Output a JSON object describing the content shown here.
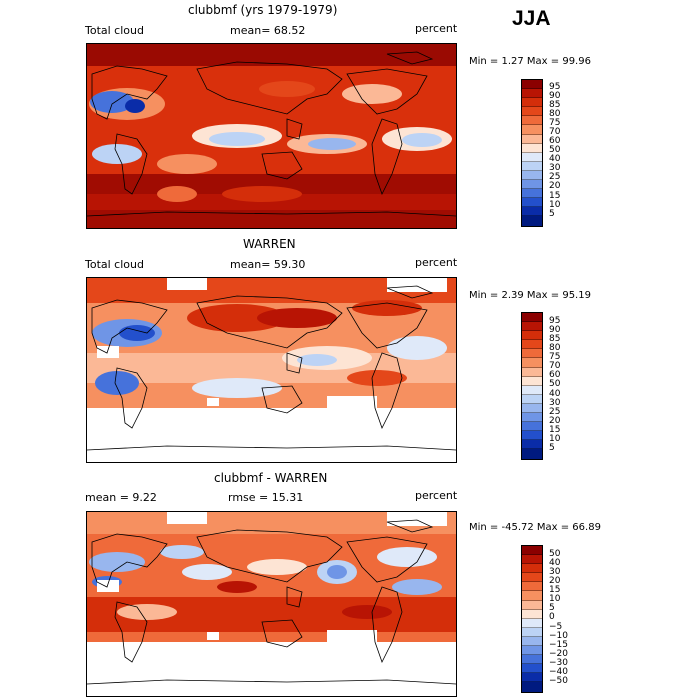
{
  "season": "JJA",
  "panels": [
    {
      "id": "model",
      "title": "clubbmf (yrs 1979-1979)",
      "left_label": "Total cloud",
      "mid_label": "mean=  68.52",
      "right_label": "percent",
      "minmax": "Min =    1.27  Max =   99.96",
      "colorbar_ticks": [
        "95",
        "90",
        "85",
        "80",
        "75",
        "70",
        "60",
        "50",
        "40",
        "30",
        "25",
        "20",
        "15",
        "10",
        "5"
      ]
    },
    {
      "id": "obs",
      "title": "WARREN",
      "left_label": "Total cloud",
      "mid_label": "mean=  59.30",
      "right_label": "percent",
      "minmax": "Min =    2.39  Max =   95.19",
      "colorbar_ticks": [
        "95",
        "90",
        "85",
        "80",
        "75",
        "70",
        "60",
        "50",
        "40",
        "30",
        "25",
        "20",
        "15",
        "10",
        "5"
      ]
    },
    {
      "id": "diff",
      "title": "clubbmf - WARREN",
      "left_label": "mean =    9.22",
      "mid_label": "rmse =   15.31",
      "right_label": "percent",
      "minmax": "Min = -45.72  Max =  66.89",
      "colorbar_ticks": [
        "50",
        "40",
        "30",
        "20",
        "15",
        "10",
        "5",
        "0",
        "−5",
        "−10",
        "−15",
        "−20",
        "−30",
        "−40",
        "−50"
      ]
    }
  ],
  "colors": {
    "scale": [
      "#8b0000",
      "#b81404",
      "#d42e0a",
      "#e4471a",
      "#ef6a3a",
      "#f69060",
      "#fbb896",
      "#fde4d4",
      "#dfe9f9",
      "#bcd3f5",
      "#98b6ee",
      "#6f95e6",
      "#4672db",
      "#2350cc",
      "#0a2ca8",
      "#001a80"
    ],
    "land_outline": "#000000"
  }
}
